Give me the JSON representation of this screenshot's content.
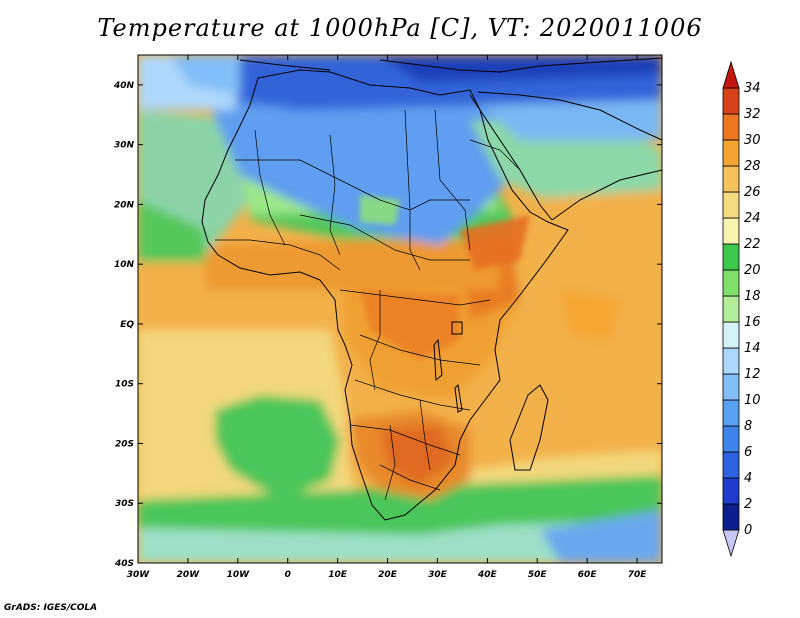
{
  "title": "Temperature at 1000hPa [C], VT: 2020011006",
  "credit": "GrADS: IGES/COLA",
  "map": {
    "lon_range": [
      -30,
      75
    ],
    "lat_range": [
      -40,
      45
    ],
    "x_ticks": [
      "30W",
      "20W",
      "10W",
      "0",
      "10E",
      "20E",
      "30E",
      "40E",
      "50E",
      "60E",
      "70E"
    ],
    "y_ticks": [
      "40N",
      "30N",
      "20N",
      "10N",
      "EQ",
      "10S",
      "20S",
      "30S",
      "40S"
    ]
  },
  "colorbar": {
    "values": [
      0,
      2,
      4,
      6,
      8,
      10,
      12,
      14,
      16,
      18,
      20,
      22,
      24,
      26,
      28,
      30,
      32,
      34
    ],
    "labels": [
      "0",
      "2",
      "4",
      "6",
      "8",
      "10",
      "12",
      "14",
      "16",
      "18",
      "20",
      "22",
      "24",
      "26",
      "28",
      "30",
      "32",
      "34"
    ],
    "colors": [
      "#c8c8f8",
      "#0a1f8c",
      "#1f3ccc",
      "#2d63e0",
      "#3f84ea",
      "#5aa0f2",
      "#82bef8",
      "#aed8fb",
      "#d4f3f8",
      "#b3ee9b",
      "#7fe06b",
      "#3dc84c",
      "#f8f4b0",
      "#f6dc80",
      "#f5c25b",
      "#f3a433",
      "#ec7622",
      "#d8421a",
      "#c41712"
    ]
  },
  "field_colors": {
    "ocean_south": "#f3d87d",
    "ocean_warm": "#f3b14a",
    "ocean_hot": "#f5a532",
    "land_hot": "#ec8a28",
    "land_very_hot": "#e06a20",
    "sahara_cool": "#5e9ef0",
    "med_cold": "#3163d8",
    "med_deep": "#1e3fb8",
    "atlantic_cool": "#8cd4a8",
    "green_band": "#55c85a",
    "light_green": "#9ce888",
    "south_green": "#4cc65a",
    "south_cold": "#6aa8ee"
  }
}
